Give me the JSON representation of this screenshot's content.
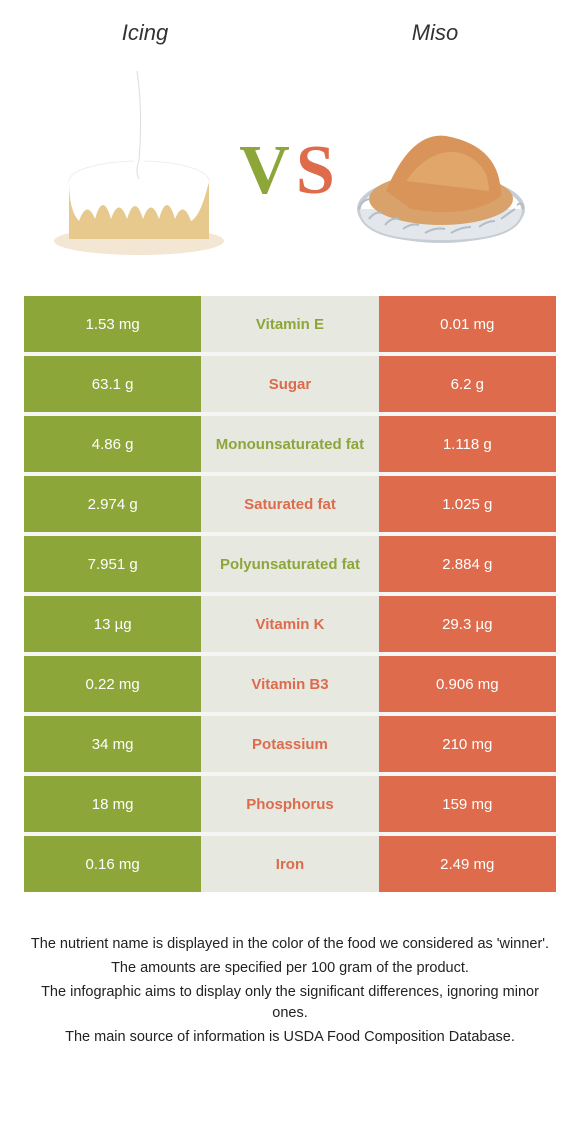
{
  "title_left": "Icing",
  "title_right": "Miso",
  "vs_colors": {
    "v": "#8da63a",
    "s": "#dd6b4c"
  },
  "left_color": "#8da63a",
  "right_color": "#dd6b4c",
  "mid_bg": "#e7e9e1",
  "row_gap_bg": "#f5f6f3",
  "rows": [
    {
      "left": "1.53 mg",
      "label": "Vitamin E",
      "right": "0.01 mg",
      "winner": "left"
    },
    {
      "left": "63.1 g",
      "label": "Sugar",
      "right": "6.2 g",
      "winner": "right"
    },
    {
      "left": "4.86 g",
      "label": "Monounsaturated fat",
      "right": "1.118 g",
      "winner": "left"
    },
    {
      "left": "2.974 g",
      "label": "Saturated fat",
      "right": "1.025 g",
      "winner": "right"
    },
    {
      "left": "7.951 g",
      "label": "Polyunsaturated fat",
      "right": "2.884 g",
      "winner": "left"
    },
    {
      "left": "13 µg",
      "label": "Vitamin K",
      "right": "29.3 µg",
      "winner": "right"
    },
    {
      "left": "0.22 mg",
      "label": "Vitamin B3",
      "right": "0.906 mg",
      "winner": "right"
    },
    {
      "left": "34 mg",
      "label": "Potassium",
      "right": "210 mg",
      "winner": "right"
    },
    {
      "left": "18 mg",
      "label": "Phosphorus",
      "right": "159 mg",
      "winner": "right"
    },
    {
      "left": "0.16 mg",
      "label": "Iron",
      "right": "2.49 mg",
      "winner": "right"
    }
  ],
  "footnotes": [
    "The nutrient name is displayed in the color of the food we considered as 'winner'.",
    "The amounts are specified per 100 gram of the product.",
    "The infographic aims to display only the significant differences, ignoring minor ones.",
    "The main source of information is USDA Food Composition Database."
  ]
}
